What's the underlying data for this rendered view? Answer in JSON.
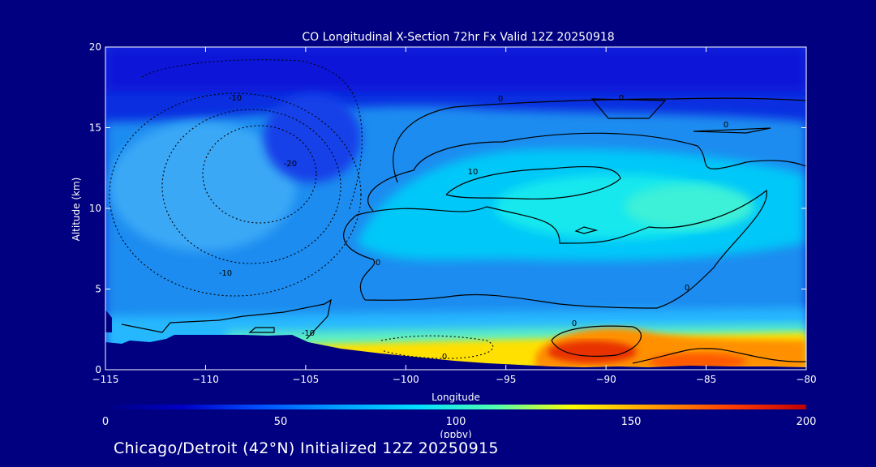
{
  "chart_data": {
    "type": "heatmap",
    "title": "CO Longitudinal X-Section 72hr  Fx Valid 12Z 20250918",
    "xlabel": "Longitude",
    "ylabel": "Altitude (km)",
    "xlim": [
      -115,
      -80
    ],
    "ylim": [
      0,
      20
    ],
    "x_ticks": [
      -115,
      -110,
      -105,
      -100,
      -95,
      -90,
      -85,
      -80
    ],
    "x_tick_labels": [
      "−115",
      "−110",
      "−105",
      "−100",
      "−95",
      "−90",
      "−85",
      "−80"
    ],
    "y_ticks": [
      0,
      5,
      10,
      15,
      20
    ],
    "y_tick_labels": [
      "0",
      "5",
      "10",
      "15",
      "20"
    ],
    "variable": "CO",
    "contour_labels": [
      "-10",
      "-20",
      "-10",
      "0",
      "0",
      "10",
      "0",
      "0",
      "0",
      "0",
      "-10",
      "0"
    ],
    "colorbar": {
      "min": 0,
      "max": 200,
      "ticks": [
        0,
        50,
        100,
        150,
        200
      ],
      "tick_labels": [
        "0",
        "50",
        "100",
        "150",
        "200"
      ],
      "unit": "(ppbv)",
      "colors": [
        "#000080",
        "#0000c8",
        "#0050ff",
        "#00a0ff",
        "#00e0ff",
        "#50ffb0",
        "#ffff00",
        "#ffa000",
        "#ff4000",
        "#c00000"
      ]
    },
    "palette": {
      "background": "#000080",
      "upper_air": "#0a2ee0",
      "mid_air": "#1e8cf0",
      "core": "#00c8f8",
      "core_bright": "#3ef0d8",
      "low_warm": "#ffe000",
      "plume_orange": "#ff9000",
      "plume_red": "#e83000",
      "terrain": "#000080",
      "contour": "#000000"
    }
  },
  "footer": "Chicago/Detroit (42°N) Initialized 12Z 20250915"
}
